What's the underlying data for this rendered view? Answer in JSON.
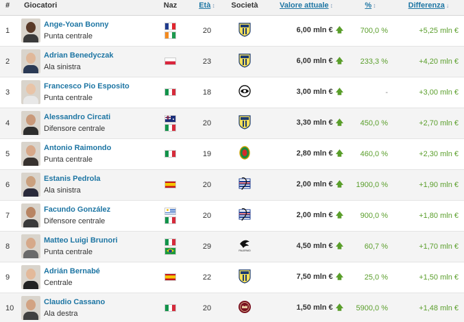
{
  "header": {
    "rank": "#",
    "players": "Giocatori",
    "nationality": "Naz",
    "age": "Età",
    "age_arrow": "↕",
    "club": "Società",
    "market_value": "Valore attuale",
    "market_value_arrow": "↕",
    "percent": "%",
    "percent_arrow": "↕",
    "difference": "Differenza",
    "difference_arrow": "↓"
  },
  "colors": {
    "link": "#1d75a3",
    "positive": "#5a9e2b",
    "header_bg": "#f2f2f2",
    "row_alt_bg": "#f4f4f4"
  },
  "rows": [
    {
      "rank": "1",
      "name": "Ange-Yoan Bonny",
      "role": "Punta centrale",
      "flags": [
        "france-flag",
        "ivory-coast-flag"
      ],
      "age": "20",
      "club_icon": "parma-crest-icon",
      "value": "6,00 mln €",
      "value_arrow": "🡅",
      "percent": "700,0 %",
      "difference": "+5,25 mln €"
    },
    {
      "rank": "2",
      "name": "Adrian Benedyczak",
      "role": "Ala sinistra",
      "flags": [
        "poland-flag"
      ],
      "age": "23",
      "club_icon": "parma-crest-icon",
      "value": "6,00 mln €",
      "value_arrow": "🡅",
      "percent": "233,3 %",
      "difference": "+4,20 mln €"
    },
    {
      "rank": "3",
      "name": "Francesco Pio Esposito",
      "role": "Punta centrale",
      "flags": [
        "italy-flag"
      ],
      "age": "18",
      "club_icon": "spezia-crest-icon",
      "value": "3,00 mln €",
      "value_arrow": "🡅",
      "percent": "-",
      "difference": "+3,00 mln €"
    },
    {
      "rank": "4",
      "name": "Alessandro Circati",
      "role": "Difensore centrale",
      "flags": [
        "australia-flag",
        "italy-flag"
      ],
      "age": "20",
      "club_icon": "parma-crest-icon",
      "value": "3,30 mln €",
      "value_arrow": "🡅",
      "percent": "450,0 %",
      "difference": "+2,70 mln €"
    },
    {
      "rank": "5",
      "name": "Antonio Raimondo",
      "role": "Punta centrale",
      "flags": [
        "italy-flag"
      ],
      "age": "19",
      "club_icon": "ternana-crest-icon",
      "value": "2,80 mln €",
      "value_arrow": "🡅",
      "percent": "460,0 %",
      "difference": "+2,30 mln €"
    },
    {
      "rank": "6",
      "name": "Estanis Pedrola",
      "role": "Ala sinistra",
      "flags": [
        "spain-flag"
      ],
      "age": "20",
      "club_icon": "sampdoria-crest-icon",
      "value": "2,00 mln €",
      "value_arrow": "🡅",
      "percent": "1900,0 %",
      "difference": "+1,90 mln €"
    },
    {
      "rank": "7",
      "name": "Facundo González",
      "role": "Difensore centrale",
      "flags": [
        "uruguay-flag",
        "italy-flag"
      ],
      "age": "20",
      "club_icon": "sampdoria-crest-icon",
      "value": "2,00 mln €",
      "value_arrow": "🡅",
      "percent": "900,0 %",
      "difference": "+1,80 mln €"
    },
    {
      "rank": "8",
      "name": "Matteo Luigi Brunori",
      "role": "Punta centrale",
      "flags": [
        "italy-flag",
        "brazil-flag"
      ],
      "age": "29",
      "club_icon": "palermo-crest-icon",
      "value": "4,50 mln €",
      "value_arrow": "🡅",
      "percent": "60,7 %",
      "difference": "+1,70 mln €"
    },
    {
      "rank": "9",
      "name": "Adrián Bernabé",
      "role": "Centrale",
      "flags": [
        "spain-flag"
      ],
      "age": "22",
      "club_icon": "parma-crest-icon",
      "value": "7,50 mln €",
      "value_arrow": "🡅",
      "percent": "25,0 %",
      "difference": "+1,50 mln €"
    },
    {
      "rank": "10",
      "name": "Claudio Cassano",
      "role": "Ala destra",
      "flags": [
        "italy-flag"
      ],
      "age": "20",
      "club_icon": "cittadella-crest-icon",
      "value": "1,50 mln €",
      "value_arrow": "🡅",
      "percent": "5900,0 %",
      "difference": "+1,48 mln €"
    }
  ]
}
